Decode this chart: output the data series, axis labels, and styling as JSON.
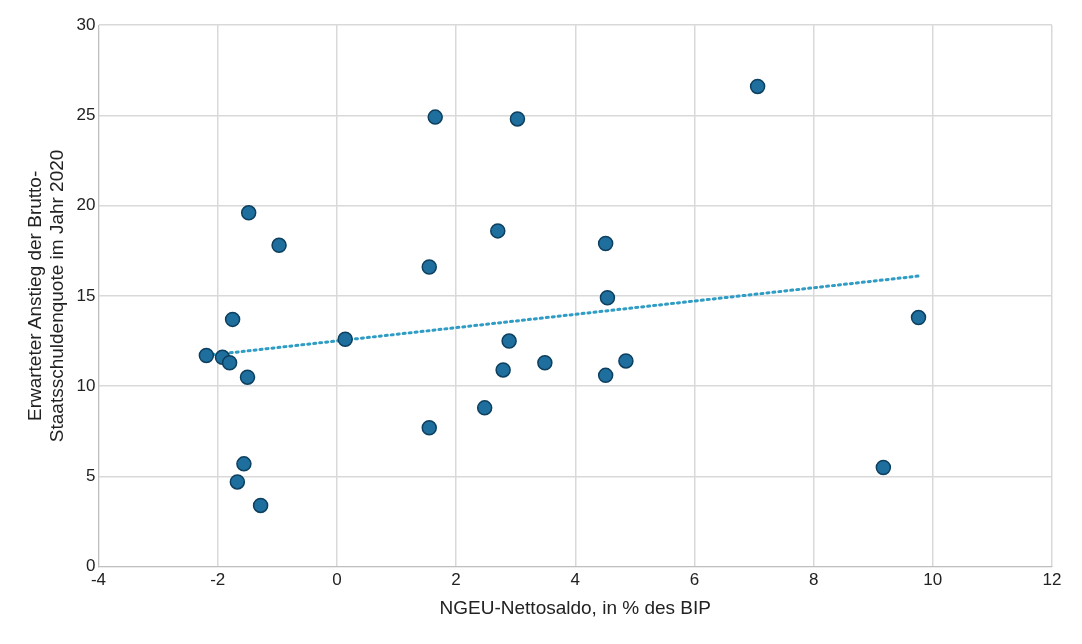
{
  "chart_data": {
    "type": "scatter",
    "xlabel": "NGEU-Nettosaldo, in % des BIP",
    "ylabel": "Erwarteter Anstieg der Brutto-\nStaatsschuldenquote im Jahr 2020",
    "xlim": [
      -4,
      12
    ],
    "xticks": [
      -4,
      -2,
      0,
      2,
      4,
      6,
      8,
      10,
      12
    ],
    "ylim": [
      0,
      30
    ],
    "yticks": [
      0,
      5,
      10,
      15,
      20,
      25,
      30
    ],
    "grid": true,
    "legend": false,
    "marker": "circle",
    "series": [
      {
        "type": "scatter",
        "color": "#1f6f9e",
        "x": [
          -2.19,
          -1.92,
          -1.8,
          -1.75,
          -1.48,
          -1.5,
          -0.97,
          -1.56,
          -1.67,
          -1.28,
          0.14,
          1.65,
          3.03,
          1.55,
          1.55,
          2.7,
          2.89,
          2.79,
          2.48,
          3.49,
          4.51,
          4.54,
          4.51,
          4.85,
          7.06,
          9.17,
          9.76
        ],
        "values": [
          11.7,
          11.6,
          11.3,
          13.7,
          19.6,
          10.5,
          17.8,
          5.7,
          4.7,
          3.4,
          12.6,
          24.9,
          24.8,
          16.6,
          7.7,
          18.6,
          12.5,
          10.9,
          8.8,
          11.3,
          17.9,
          14.9,
          10.6,
          11.4,
          26.6,
          5.5,
          13.8
        ]
      },
      {
        "type": "line",
        "color": "#2e9cc4",
        "line_style": "dotted",
        "marker": "none",
        "x": [
          -2.19,
          9.76
        ],
        "values": [
          11.7,
          16.1
        ]
      }
    ]
  }
}
